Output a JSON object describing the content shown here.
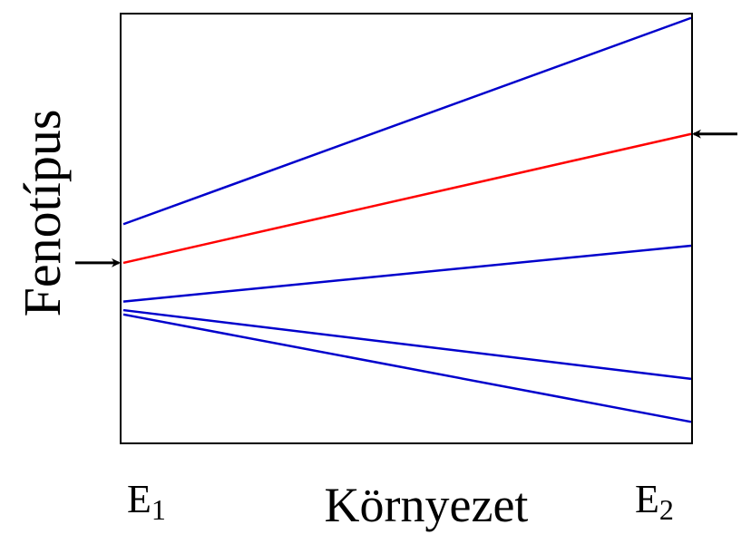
{
  "chart_data": {
    "type": "line",
    "xlabel": "Környezet",
    "ylabel": "Fenotípus",
    "x_ticks": [
      {
        "base": "E",
        "sub": "1"
      },
      {
        "base": "E",
        "sub": "2"
      }
    ],
    "x": [
      "E1",
      "E2"
    ],
    "ylim": [
      0,
      100
    ],
    "grid": false,
    "series": [
      {
        "values": [
          51,
          99
        ],
        "color": "#0000cc"
      },
      {
        "values": [
          42,
          72
        ],
        "color": "#ff0000",
        "highlighted": true
      },
      {
        "values": [
          33,
          46
        ],
        "color": "#0000cc"
      },
      {
        "values": [
          31,
          15
        ],
        "color": "#0000cc"
      },
      {
        "values": [
          30,
          5
        ],
        "color": "#0000cc"
      }
    ],
    "arrows": [
      {
        "at_x": "E1",
        "y": 42,
        "direction": "right"
      },
      {
        "at_x": "E2",
        "y": 72,
        "direction": "left"
      }
    ]
  }
}
